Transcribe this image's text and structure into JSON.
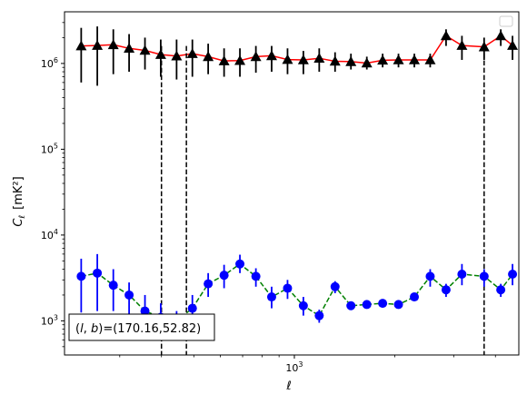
{
  "chart_data": {
    "type": "scatter",
    "title": "",
    "xlabel": "ℓ",
    "ylabel_main": "C",
    "ylabel_sub": "ℓ",
    "ylabel_unit": "[mK²]",
    "xscale": "log",
    "yscale": "log",
    "xlim": [
      205,
      4700
    ],
    "ylim": [
      400,
      4000000
    ],
    "x_ticks": [
      {
        "value": 1000,
        "base": "10",
        "exp": "3"
      }
    ],
    "y_ticks": [
      {
        "value": 1000,
        "base": "10",
        "exp": "3"
      },
      {
        "value": 10000,
        "base": "10",
        "exp": "4"
      },
      {
        "value": 100000,
        "base": "10",
        "exp": "5"
      },
      {
        "value": 1000000,
        "base": "10",
        "exp": "6"
      }
    ],
    "legend": {
      "placement": "top-right",
      "entries": []
    },
    "annotation": "(l, b)=(170.16,52.82)",
    "annotation_parts": {
      "l": "l",
      "b": "b",
      "value": "=(170.16,52.82)"
    },
    "vlines": [
      400,
      475,
      3700
    ],
    "series": [
      {
        "marker": "triangle",
        "color": "#000000",
        "line_color": "#ff0000",
        "line_style": "solid",
        "x": [
          230,
          257,
          287,
          320,
          357,
          398,
          444,
          495,
          552,
          616,
          687,
          767,
          855,
          954,
          1064,
          1187,
          1324,
          1477,
          1648,
          1838,
          2050,
          2287,
          2551,
          2846,
          3175,
          3700,
          4150,
          4500
        ],
        "y": [
          1600000,
          1620000,
          1650000,
          1500000,
          1420000,
          1270000,
          1220000,
          1300000,
          1200000,
          1070000,
          1080000,
          1200000,
          1230000,
          1110000,
          1100000,
          1150000,
          1060000,
          1050000,
          1010000,
          1090000,
          1100000,
          1100000,
          1100000,
          2100000,
          1620000,
          1560000,
          2100000,
          1620000
        ],
        "y_low": [
          600000,
          550000,
          750000,
          800000,
          850000,
          700000,
          650000,
          700000,
          750000,
          700000,
          700000,
          780000,
          800000,
          750000,
          750000,
          800000,
          800000,
          850000,
          850000,
          900000,
          900000,
          900000,
          900000,
          1600000,
          1100000,
          1100000,
          1600000,
          1100000
        ],
        "y_high": [
          2600000,
          2700000,
          2500000,
          2200000,
          2000000,
          1900000,
          1900000,
          1900000,
          1700000,
          1500000,
          1500000,
          1600000,
          1600000,
          1500000,
          1400000,
          1500000,
          1350000,
          1300000,
          1200000,
          1300000,
          1300000,
          1300000,
          1300000,
          2500000,
          2100000,
          2000000,
          2500000,
          2100000
        ]
      },
      {
        "marker": "circle",
        "color": "#0000ff",
        "line_color": "#008000",
        "line_style": "dashed",
        "x": [
          230,
          257,
          287,
          320,
          357,
          398,
          444,
          495,
          552,
          616,
          687,
          767,
          855,
          954,
          1064,
          1187,
          1324,
          1477,
          1648,
          1838,
          2050,
          2287,
          2551,
          2846,
          3175,
          3700,
          4150,
          4500
        ],
        "y": [
          3300,
          3600,
          2600,
          2000,
          1300,
          1100,
          1000,
          1400,
          2700,
          3400,
          4600,
          3300,
          1900,
          2400,
          1500,
          1150,
          2500,
          1500,
          1550,
          1600,
          1550,
          1900,
          3300,
          2300,
          3500,
          3300,
          2300,
          3500
        ],
        "y_low": [
          1250,
          1300,
          1300,
          1100,
          850,
          750,
          700,
          900,
          1900,
          2400,
          3600,
          2500,
          1400,
          1800,
          1150,
          950,
          2100,
          1400,
          1450,
          1500,
          1450,
          1700,
          2500,
          1900,
          2600,
          2500,
          1900,
          2600
        ],
        "y_high": [
          5300,
          6000,
          4000,
          2800,
          2000,
          1600,
          1300,
          2000,
          3600,
          4500,
          5900,
          4100,
          2500,
          3000,
          1900,
          1350,
          2900,
          1600,
          1650,
          1700,
          1650,
          2100,
          4000,
          2700,
          4600,
          4000,
          2700,
          4600
        ]
      }
    ]
  }
}
